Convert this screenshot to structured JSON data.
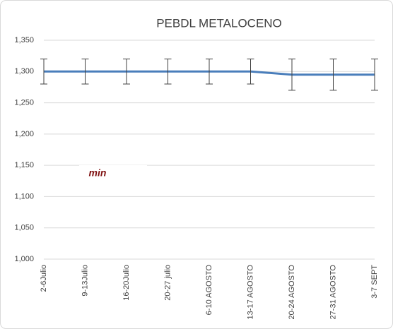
{
  "chart_data": {
    "type": "line",
    "title": "PEBDL METALOCENO",
    "categories": [
      "2-6Julio",
      "9-13Julio",
      "16-20Julio",
      "20-27 julio",
      "6-10 AGOSTO",
      "13-17 AGOSTO",
      "20-24 AGOSTO",
      "27-31 AGOSTO",
      "3-7 SEPT"
    ],
    "values": [
      1300,
      1300,
      1300,
      1300,
      1300,
      1300,
      1295,
      1295,
      1295
    ],
    "errors": [
      20,
      20,
      20,
      20,
      20,
      20,
      25,
      25,
      25
    ],
    "color": "#4a7ebb",
    "ylim": [
      1000,
      1350
    ],
    "yticks": [
      {
        "value": 1000,
        "label": "1,000"
      },
      {
        "value": 1050,
        "label": "1,050"
      },
      {
        "value": 1100,
        "label": "1,100"
      },
      {
        "value": 1150,
        "label": "1,150"
      },
      {
        "value": 1200,
        "label": "1,200"
      },
      {
        "value": 1250,
        "label": "1,250"
      },
      {
        "value": 1300,
        "label": "1,300"
      },
      {
        "value": 1350,
        "label": "1,350"
      }
    ],
    "grid": true,
    "annotation": "min"
  }
}
